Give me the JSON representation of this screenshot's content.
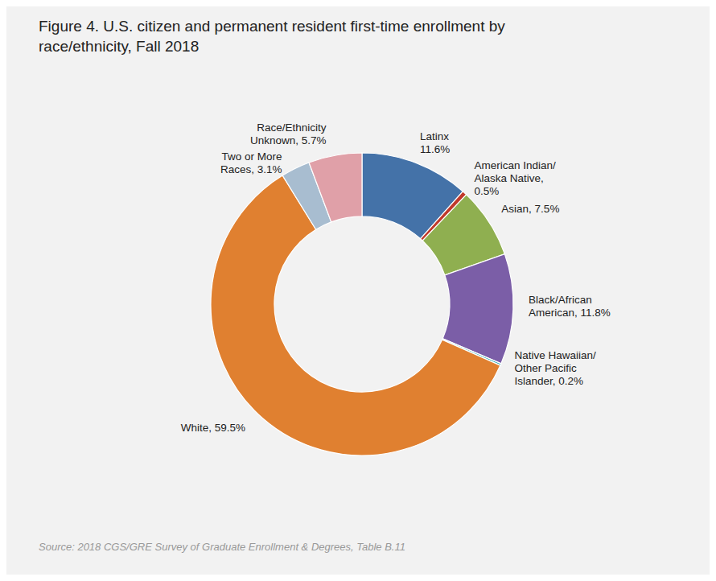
{
  "chart_data": {
    "type": "pie",
    "title": "Figure 4. U.S. citizen and permanent resident first-time enrollment by\nrace/ethnicity, Fall 2018",
    "categories": [
      "Latinx\n11.6%",
      "American Indian/\nAlaska Native,\n0.5%",
      "Asian, 7.5%",
      "Black/African\nAmerican, 11.8%",
      "Native Hawaiian/\nOther Pacific\nIslander, 0.2%",
      "White, 59.5%",
      "Two or More\nRaces, 3.1%",
      "Race/Ethnicity\nUnknown, 5.7%"
    ],
    "values": [
      11.6,
      0.5,
      7.5,
      11.8,
      0.2,
      59.5,
      3.1,
      5.7
    ],
    "colors": [
      "#4472A8",
      "#C0392B",
      "#8FAF50",
      "#7B5EA7",
      "#2EACB4",
      "#E08030",
      "#A8BDD0",
      "#E0A0A8"
    ],
    "annotations": [
      "Source: 2018 CGS/GRE Survey of Graduate Enrollment & Degrees, Table B.11"
    ]
  }
}
